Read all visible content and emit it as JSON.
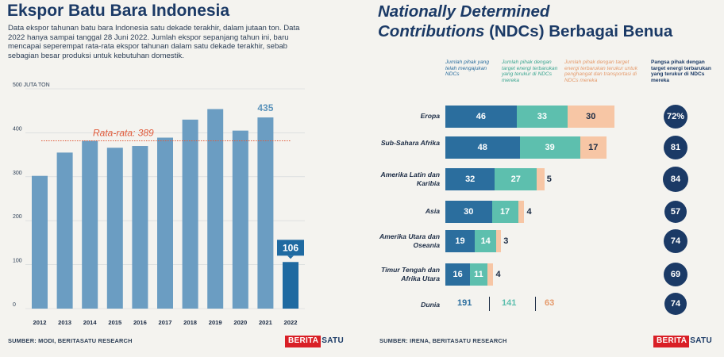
{
  "left": {
    "title": "Ekspor Batu Bara Indonesia",
    "description": "Data ekspor tahunan batu bara Indonesia satu dekade terakhir, dalam jutaan ton. Data 2022 hanya sampai tanggal 28 Juni 2022. Jumlah ekspor sepanjang tahun ini, baru mencapai seperempat rata-rata ekspor tahunan dalam satu dekade terakhir, sebab sebagian besar produksi untuk kebutuhan domestik.",
    "source": "SUMBER: MODI, BERITASATU RESEARCH",
    "logo_part1": "BERITA",
    "logo_part2": "SATU"
  },
  "right": {
    "title_italic": "Nationally Determined",
    "title_italic2": "Contributions",
    "title_rest": " (NDCs) Berbagai Benua",
    "source": "SUMBER: IRENA, BERITASATU RESEARCH",
    "logo_part1": "BERITA",
    "logo_part2": "SATU"
  },
  "chart_data": [
    {
      "type": "bar",
      "title": "Ekspor Batu Bara Indonesia",
      "ylabel": "JUTA TON",
      "categories": [
        "2012",
        "2013",
        "2014",
        "2015",
        "2016",
        "2017",
        "2018",
        "2019",
        "2020",
        "2021",
        "2022"
      ],
      "values": [
        302,
        355,
        382,
        366,
        370,
        389,
        430,
        454,
        405,
        435,
        106
      ],
      "highlight_labels": {
        "2021": "435",
        "2022": "106"
      },
      "ylim": [
        0,
        500
      ],
      "yticks": [
        "0",
        "100",
        "200",
        "300",
        "400",
        "500"
      ],
      "top_tick_label": "500 JUTA TON",
      "average": {
        "label": "Rata-rata: 389",
        "value": 389
      },
      "colors": {
        "bar": "#6b9dc2",
        "highlight": "#1f6aa1",
        "average_line": "#e05a3a",
        "average_label": "#e05a3a"
      }
    },
    {
      "type": "bar",
      "orientation": "horizontal-stacked",
      "title": "Nationally Determined Contributions (NDCs) Berbagai Benua",
      "column_headers": [
        "Jumlah pihak yang telah mengajukan NDCs",
        "Jumlah pihak dengan target energi terbarukan yang terukur di NDCs mereka",
        "Jumlah pihak dengan target energi terbarukan terukur untuk penghangat dan transportasi di NDCs mereka",
        "Pangsa pihak dengan target energi terbarukan yang terukur di NDCs mereka"
      ],
      "categories": [
        "Eropa",
        "Sub-Sahara Afrika",
        "Amerika Latin dan Karibia",
        "Asia",
        "Amerika Utara dan Oseania",
        "Timur Tengah dan Afrika Utara"
      ],
      "series": [
        {
          "values": [
            46,
            48,
            32,
            30,
            19,
            16
          ]
        },
        {
          "values": [
            33,
            39,
            27,
            17,
            14,
            11
          ]
        },
        {
          "values": [
            30,
            17,
            5,
            4,
            3,
            4
          ]
        }
      ],
      "shares": [
        "72%",
        "81",
        "84",
        "57",
        "74",
        "69"
      ],
      "world": {
        "label": "Dunia",
        "values": [
          "191",
          "141",
          "63"
        ],
        "share": "74"
      },
      "colors": {
        "s1": "#2b6e9e",
        "s2": "#5dbfae",
        "s3": "#f7c6a5",
        "circle": "#1b3a66",
        "h1": "#2b6e9e",
        "h2": "#3aa590",
        "h3": "#e59a6b",
        "h4": "#1b3a66"
      }
    }
  ]
}
